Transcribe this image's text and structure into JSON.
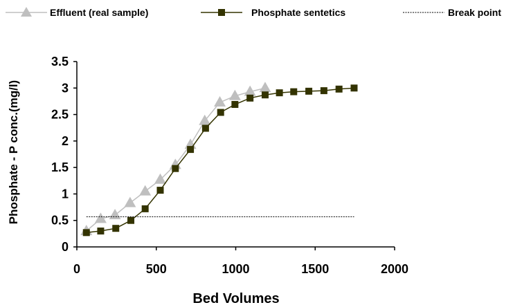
{
  "chart_data": {
    "type": "line",
    "xlabel": "Bed Volumes",
    "ylabel": "Phosphate - P conc.(mg/l)",
    "xlim": [
      0,
      2000
    ],
    "ylim": [
      0,
      3.5
    ],
    "xticks": [
      "0",
      "500",
      "1000",
      "1500",
      "2000"
    ],
    "yticks": [
      "0",
      "0.5",
      "1",
      "1.5",
      "2",
      "2.5",
      "3",
      "3.5"
    ],
    "grid": false,
    "legend_position": "top",
    "series": [
      {
        "name": "Effluent (real sample)",
        "marker": "triangle",
        "color": "#bfbfbf",
        "x": [
          60,
          150,
          240,
          335,
          430,
          525,
          620,
          715,
          805,
          900,
          995,
          1090,
          1185
        ],
        "y": [
          0.3,
          0.53,
          0.6,
          0.83,
          1.05,
          1.27,
          1.55,
          1.93,
          2.38,
          2.73,
          2.85,
          2.93,
          3.0
        ]
      },
      {
        "name": "Phosphate sentetics",
        "marker": "square",
        "color": "#333300",
        "x": [
          60,
          150,
          245,
          340,
          430,
          525,
          620,
          715,
          810,
          905,
          995,
          1090,
          1185,
          1275,
          1365,
          1460,
          1555,
          1650,
          1745
        ],
        "y": [
          0.27,
          0.3,
          0.35,
          0.5,
          0.72,
          1.07,
          1.48,
          1.84,
          2.24,
          2.54,
          2.69,
          2.81,
          2.87,
          2.91,
          2.93,
          2.94,
          2.95,
          2.98,
          3.0
        ]
      },
      {
        "name": "Break point",
        "marker": "none",
        "color": "#000000",
        "style": "dotted",
        "x": [
          60,
          1745
        ],
        "y": [
          0.57,
          0.57
        ]
      }
    ]
  }
}
